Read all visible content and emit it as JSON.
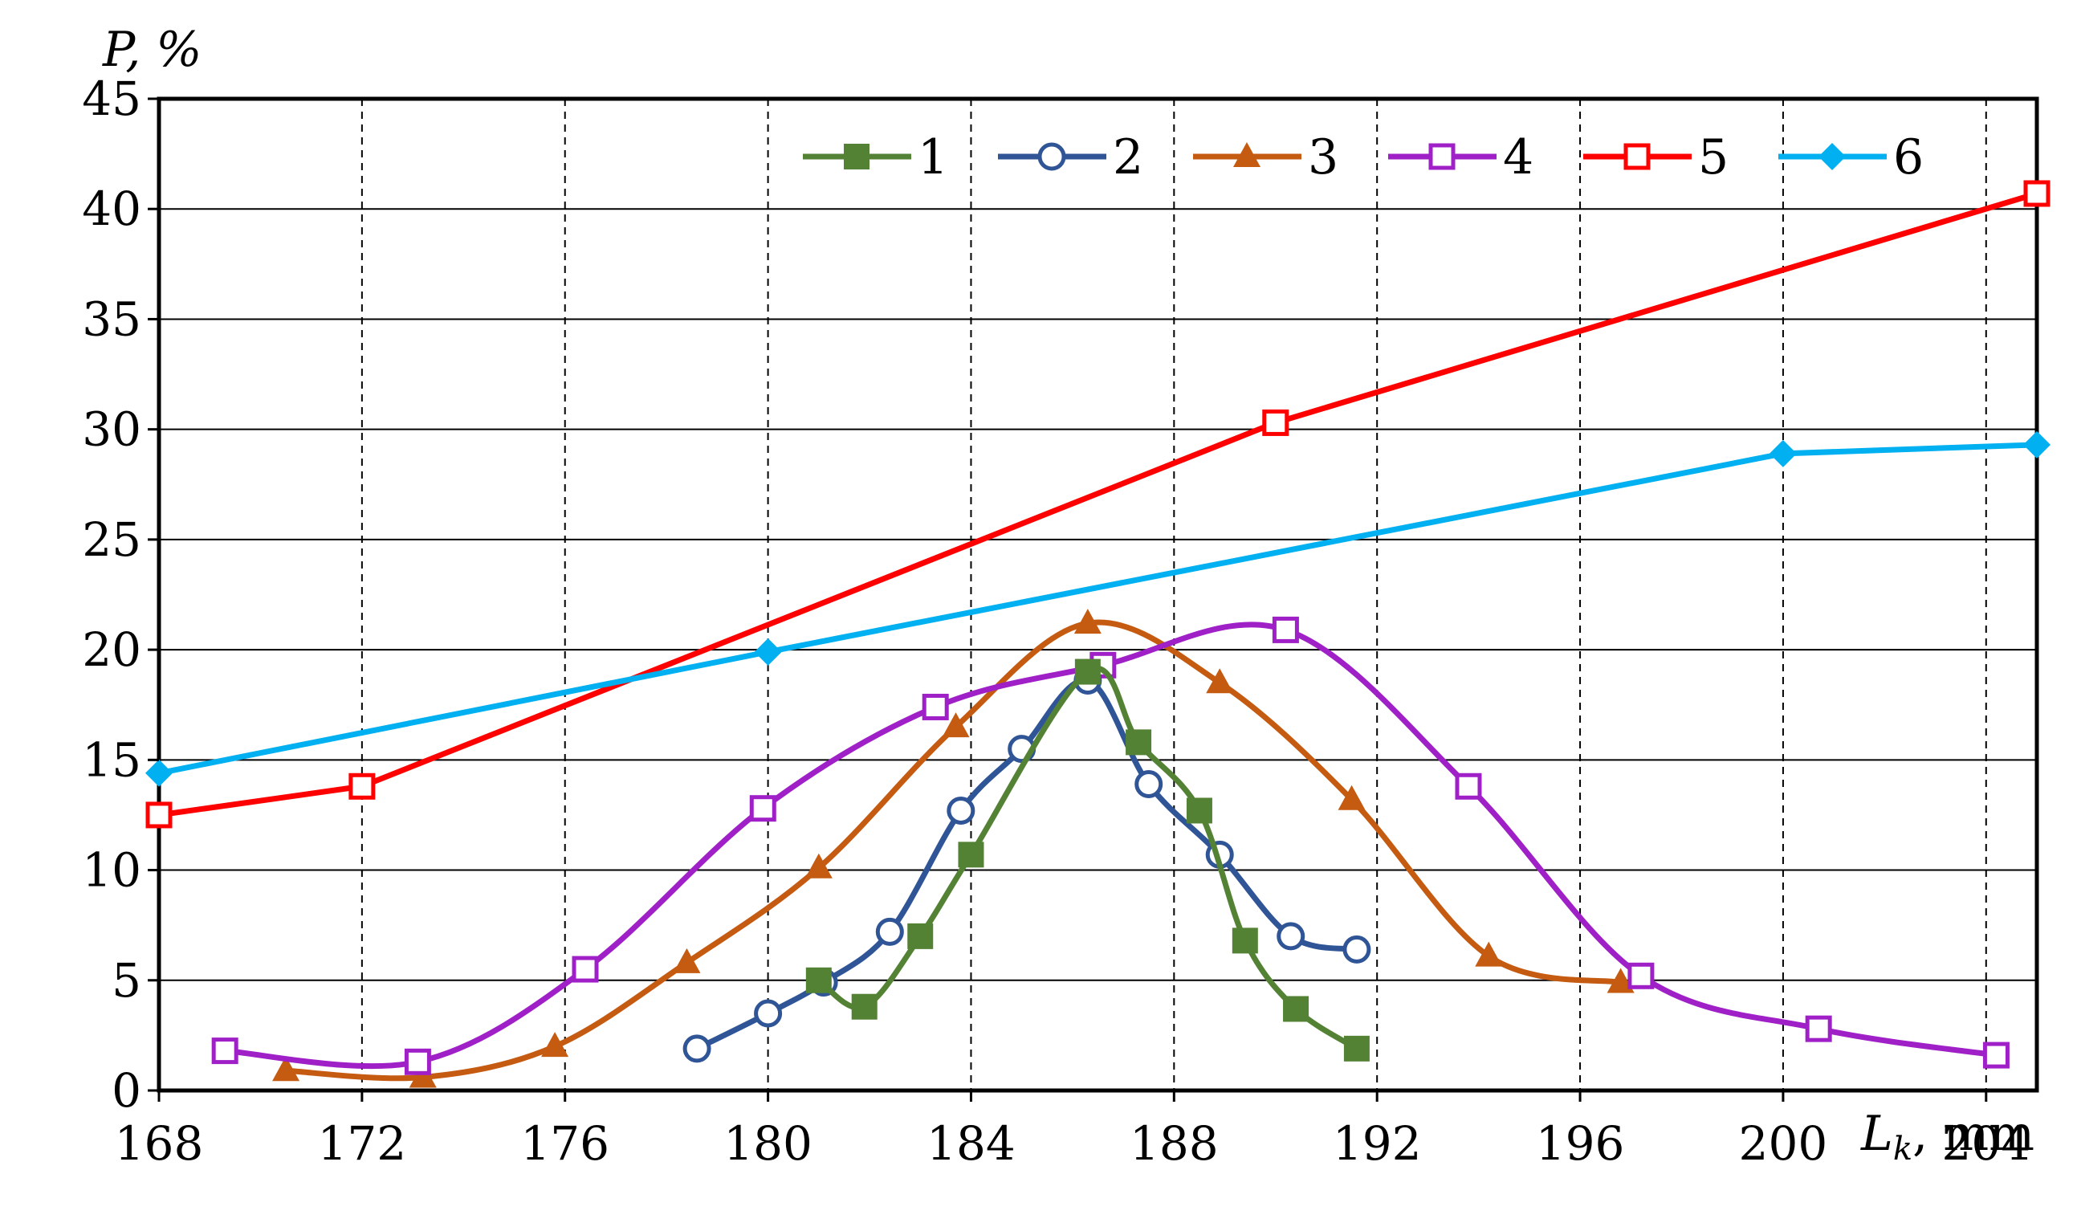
{
  "chart_data": {
    "type": "line",
    "title": "",
    "xlabel": "L",
    "xlabel_sub": "k",
    "xlabel_unit": ", mm",
    "ylabel": "P, %",
    "xlim": [
      168,
      205
    ],
    "ylim": [
      0,
      45
    ],
    "x_ticks": [
      168,
      172,
      176,
      180,
      184,
      188,
      192,
      196,
      200,
      204
    ],
    "y_ticks": [
      0,
      5,
      10,
      15,
      20,
      25,
      30,
      35,
      40,
      45
    ],
    "grid": {
      "horizontal": "solid",
      "vertical": "dashed"
    },
    "legend_position": "top",
    "series": [
      {
        "name": "1",
        "color": "#548235",
        "marker": "filled-square",
        "x": [
          181.0,
          181.9,
          183.0,
          184.0,
          186.3,
          187.3,
          188.5,
          189.4,
          190.4,
          191.6
        ],
        "y": [
          5.0,
          3.8,
          7.0,
          10.7,
          19.0,
          15.8,
          12.7,
          6.8,
          3.7,
          1.9
        ]
      },
      {
        "name": "2",
        "color": "#2F5597",
        "marker": "open-circle",
        "x": [
          178.6,
          180.0,
          181.1,
          182.4,
          183.8,
          185.0,
          186.3,
          187.5,
          188.9,
          190.3,
          191.6
        ],
        "y": [
          1.9,
          3.5,
          4.9,
          7.2,
          12.7,
          15.5,
          18.6,
          13.9,
          10.7,
          7.0,
          6.4
        ]
      },
      {
        "name": "3",
        "color": "#C55A11",
        "marker": "filled-triangle",
        "x": [
          170.5,
          173.2,
          175.8,
          178.4,
          181.0,
          183.7,
          186.3,
          188.9,
          191.5,
          194.2,
          196.8
        ],
        "y": [
          0.9,
          0.6,
          2.0,
          5.8,
          10.1,
          16.5,
          21.2,
          18.5,
          13.2,
          6.1,
          4.9
        ]
      },
      {
        "name": "4",
        "color": "#A020C8",
        "marker": "open-square",
        "x": [
          169.3,
          173.1,
          176.4,
          179.9,
          183.3,
          186.6,
          190.2,
          193.8,
          197.2,
          200.7,
          204.2
        ],
        "y": [
          1.8,
          1.3,
          5.5,
          12.8,
          17.4,
          19.3,
          20.9,
          13.8,
          5.2,
          2.8,
          1.6
        ]
      },
      {
        "name": "5",
        "color": "#FF0000",
        "marker": "open-square",
        "x": [
          168.0,
          172.0,
          190.0,
          205.0
        ],
        "y": [
          12.5,
          13.8,
          30.3,
          40.7
        ]
      },
      {
        "name": "6",
        "color": "#00B0F0",
        "marker": "filled-diamond",
        "x": [
          168.0,
          180.0,
          200.0,
          205.0
        ],
        "y": [
          14.4,
          19.9,
          28.9,
          29.3
        ]
      }
    ]
  }
}
